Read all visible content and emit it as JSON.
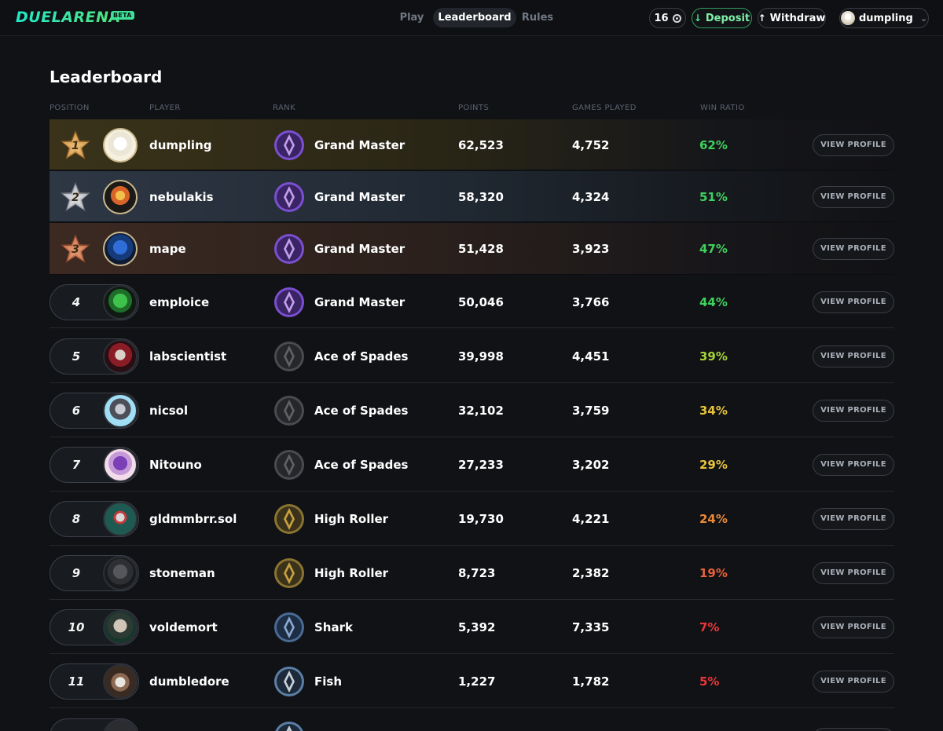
{
  "header": {
    "logo": "DUELARENA",
    "beta": "BETA",
    "tabs": [
      {
        "label": "Play",
        "active": false
      },
      {
        "label": "Leaderboard",
        "active": true
      },
      {
        "label": "Rules",
        "active": false
      }
    ],
    "balance": "16",
    "deposit_label": "Deposit",
    "withdraw_label": "Withdraw",
    "username": "dumpling"
  },
  "page_title": "Leaderboard",
  "columns": [
    "POSITION",
    "PLAYER",
    "RANK",
    "POINTS",
    "GAMES PLAYED",
    "WIN RATIO"
  ],
  "view_label": "VIEW PROFILE",
  "colors": {
    "accent": "#2ee6b8",
    "win_high": "#3ed15e",
    "win_mid_high": "#a6d33a",
    "win_mid": "#e6c33a",
    "win_low": "#e8893a",
    "win_lower": "#e8613a",
    "win_lowest": "#e8353a"
  },
  "rows": [
    {
      "position": "1",
      "player": "dumpling",
      "rank": "Grand Master",
      "points": "62,523",
      "games": "4,752",
      "win_ratio": "62%",
      "win_color": "#3ed15e",
      "medal": "gold",
      "rank_icon": "grand-master-icon",
      "avatar": "white-hooded-avatar"
    },
    {
      "position": "2",
      "player": "nebulakis",
      "rank": "Grand Master",
      "points": "58,320",
      "games": "4,324",
      "win_ratio": "51%",
      "win_color": "#3ed15e",
      "medal": "silver",
      "rank_icon": "grand-master-icon",
      "avatar": "flame-skull-avatar"
    },
    {
      "position": "3",
      "player": "mape",
      "rank": "Grand Master",
      "points": "51,428",
      "games": "3,923",
      "win_ratio": "47%",
      "win_color": "#3ed15e",
      "medal": "bronze",
      "rank_icon": "grand-master-icon",
      "avatar": "blue-figure-avatar"
    },
    {
      "position": "4",
      "player": "emploice",
      "rank": "Grand Master",
      "points": "50,046",
      "games": "3,766",
      "win_ratio": "44%",
      "win_color": "#3ed15e",
      "medal": "",
      "rank_icon": "grand-master-icon",
      "avatar": "green-alien-avatar"
    },
    {
      "position": "5",
      "player": "labscientist",
      "rank": "Ace of Spades",
      "points": "39,998",
      "games": "4,451",
      "win_ratio": "39%",
      "win_color": "#a6d33a",
      "medal": "",
      "rank_icon": "ace-of-spades-icon",
      "avatar": "masked-figure-avatar"
    },
    {
      "position": "6",
      "player": "nicsol",
      "rank": "Ace of Spades",
      "points": "32,102",
      "games": "3,759",
      "win_ratio": "34%",
      "win_color": "#e6c33a",
      "medal": "",
      "rank_icon": "ace-of-spades-icon",
      "avatar": "robot-avatar"
    },
    {
      "position": "7",
      "player": "Nitouno",
      "rank": "Ace of Spades",
      "points": "27,233",
      "games": "3,202",
      "win_ratio": "29%",
      "win_color": "#e6c33a",
      "medal": "",
      "rank_icon": "ace-of-spades-icon",
      "avatar": "purple-creature-avatar"
    },
    {
      "position": "8",
      "player": "gldmmbrr.sol",
      "rank": "High Roller",
      "points": "19,730",
      "games": "4,221",
      "win_ratio": "24%",
      "win_color": "#e8893a",
      "medal": "",
      "rank_icon": "high-roller-icon",
      "avatar": "teal-figure-avatar"
    },
    {
      "position": "9",
      "player": "stoneman",
      "rank": "High Roller",
      "points": "8,723",
      "games": "2,382",
      "win_ratio": "19%",
      "win_color": "#e8613a",
      "medal": "",
      "rank_icon": "high-roller-icon",
      "avatar": "stone-statue-avatar"
    },
    {
      "position": "10",
      "player": "voldemort",
      "rank": "Shark",
      "points": "5,392",
      "games": "7,335",
      "win_ratio": "7%",
      "win_color": "#e8353a",
      "medal": "",
      "rank_icon": "shark-icon",
      "avatar": "bald-man-avatar"
    },
    {
      "position": "11",
      "player": "dumbledore",
      "rank": "Fish",
      "points": "1,227",
      "games": "1,782",
      "win_ratio": "5%",
      "win_color": "#e8353a",
      "medal": "",
      "rank_icon": "fish-icon",
      "avatar": "wizard-avatar"
    }
  ]
}
